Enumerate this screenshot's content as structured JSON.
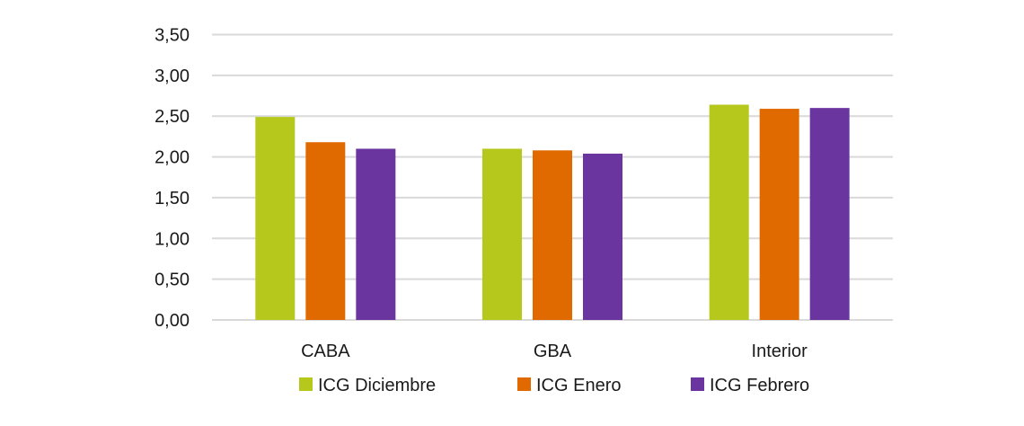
{
  "chart_data": {
    "type": "bar",
    "title": "",
    "xlabel": "",
    "ylabel": "",
    "categories": [
      "CABA",
      "GBA",
      "Interior"
    ],
    "series": [
      {
        "name": "ICG Diciembre",
        "color": "#b5c81b",
        "values": [
          2.49,
          2.1,
          2.64
        ]
      },
      {
        "name": "ICG Enero",
        "color": "#e06a00",
        "values": [
          2.18,
          2.08,
          2.59
        ]
      },
      {
        "name": "ICG Febrero",
        "color": "#6b35a0",
        "values": [
          2.1,
          2.04,
          2.6
        ]
      }
    ],
    "ylim": [
      0,
      3.5
    ],
    "yticks": [
      0,
      0.5,
      1.0,
      1.5,
      2.0,
      2.5,
      3.0,
      3.5
    ],
    "ytick_labels": [
      "0,00",
      "0,50",
      "1,00",
      "1,50",
      "2,00",
      "2,50",
      "3,00",
      "3,50"
    ],
    "grid": true,
    "legend_position": "bottom"
  }
}
